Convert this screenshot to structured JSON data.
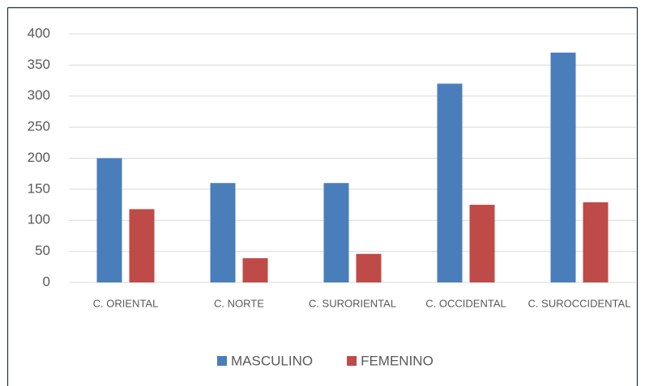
{
  "chart_data": {
    "type": "bar",
    "categories": [
      "C. ORIENTAL",
      "C. NORTE",
      "C. SURORIENTAL",
      "C. OCCIDENTAL",
      "C. SUROCCIDENTAL"
    ],
    "series": [
      {
        "name": "MASCULINO",
        "color": "#4a7ebb",
        "values": [
          200,
          160,
          160,
          320,
          370
        ]
      },
      {
        "name": "FEMENINO",
        "color": "#be4b48",
        "values": [
          118,
          39,
          46,
          125,
          129
        ]
      }
    ],
    "ylim": [
      0,
      400
    ],
    "yticks": [
      0,
      50,
      100,
      150,
      200,
      250,
      300,
      350,
      400
    ],
    "grid": true,
    "legend": "bottom"
  }
}
